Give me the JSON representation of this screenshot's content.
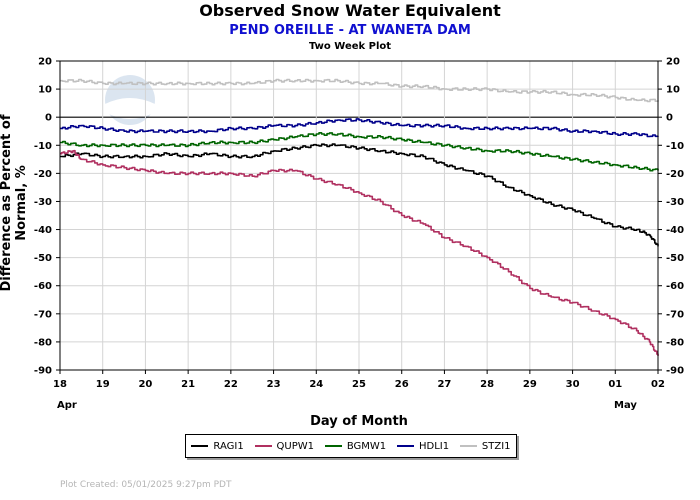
{
  "header": {
    "title": "Observed Snow Water Equivalent",
    "subtitle": "PEND OREILLE - AT WANETA DAM",
    "plot_type": "Two Week Plot"
  },
  "footer": {
    "created": "Plot Created: 05/01/2025 9:27pm PDT"
  },
  "watermark": {
    "text": "NOAA"
  },
  "chart_data": {
    "type": "line",
    "ylabel": "Difference as Percent of Normal, %",
    "xlabel": "Day of Month",
    "ylim": [
      -90,
      20
    ],
    "yticks": [
      20,
      10,
      0,
      -10,
      -20,
      -30,
      -40,
      -50,
      -60,
      -70,
      -80,
      -90
    ],
    "xlim": [
      18,
      32
    ],
    "xtick_labels": [
      "18",
      "19",
      "20",
      "21",
      "22",
      "23",
      "24",
      "25",
      "26",
      "27",
      "28",
      "29",
      "30",
      "01",
      "02"
    ],
    "month_labels": [
      {
        "label": "Apr",
        "x": 18
      },
      {
        "label": "May",
        "x": 31
      }
    ],
    "grid": true,
    "legend_position": "bottom",
    "series": [
      {
        "name": "RAGI1",
        "color": "#000000",
        "x": [
          18.0,
          18.5,
          19.0,
          19.5,
          20.0,
          20.5,
          21.0,
          21.5,
          22.0,
          22.5,
          23.0,
          23.5,
          24.0,
          24.5,
          25.0,
          25.5,
          26.0,
          26.5,
          27.0,
          27.5,
          28.0,
          28.5,
          29.0,
          29.5,
          30.0,
          30.5,
          31.0,
          31.5,
          31.8,
          32.0
        ],
        "y": [
          -14,
          -13,
          -14,
          -14,
          -14,
          -13,
          -14,
          -13,
          -14,
          -14,
          -12,
          -11,
          -10,
          -10,
          -11,
          -12,
          -13,
          -14,
          -17,
          -19,
          -21,
          -25,
          -28,
          -31,
          -33,
          -36,
          -39,
          -40,
          -42,
          -46
        ]
      },
      {
        "name": "QUPW1",
        "color": "#b03060",
        "x": [
          18.0,
          18.3,
          18.5,
          19.0,
          19.5,
          20.0,
          20.5,
          21.0,
          21.5,
          22.0,
          22.5,
          23.0,
          23.5,
          24.0,
          24.5,
          25.0,
          25.5,
          26.0,
          26.5,
          27.0,
          27.5,
          28.0,
          28.5,
          29.0,
          29.5,
          30.0,
          30.5,
          31.0,
          31.5,
          31.8,
          32.0
        ],
        "y": [
          -13,
          -12,
          -15,
          -17,
          -18,
          -19,
          -20,
          -20,
          -20,
          -20,
          -21,
          -19,
          -19,
          -22,
          -24,
          -27,
          -30,
          -35,
          -38,
          -43,
          -46,
          -50,
          -55,
          -61,
          -64,
          -66,
          -69,
          -72,
          -76,
          -80,
          -85
        ]
      },
      {
        "name": "BGMW1",
        "color": "#006400",
        "x": [
          18.0,
          18.5,
          19.0,
          19.5,
          20.0,
          20.5,
          21.0,
          21.5,
          22.0,
          22.5,
          23.0,
          23.5,
          24.0,
          24.5,
          25.0,
          25.5,
          26.0,
          26.5,
          27.0,
          27.5,
          28.0,
          28.5,
          29.0,
          29.5,
          30.0,
          30.5,
          31.0,
          31.5,
          32.0
        ],
        "y": [
          -9,
          -10,
          -10,
          -10,
          -10,
          -10,
          -10,
          -9,
          -9,
          -9,
          -8,
          -7,
          -6,
          -6,
          -7,
          -7,
          -8,
          -9,
          -10,
          -11,
          -12,
          -12,
          -13,
          -14,
          -15,
          -16,
          -17,
          -18,
          -19
        ]
      },
      {
        "name": "HDLI1",
        "color": "#00008b",
        "x": [
          18.0,
          18.5,
          19.0,
          19.5,
          20.0,
          20.5,
          21.0,
          21.5,
          22.0,
          22.5,
          23.0,
          23.5,
          24.0,
          24.5,
          25.0,
          25.5,
          26.0,
          26.5,
          27.0,
          27.5,
          28.0,
          28.5,
          29.0,
          29.5,
          30.0,
          30.5,
          31.0,
          31.5,
          32.0
        ],
        "y": [
          -4,
          -3,
          -4,
          -5,
          -5,
          -5,
          -5,
          -5,
          -4,
          -4,
          -3,
          -3,
          -2,
          -1,
          -1,
          -2,
          -3,
          -3,
          -3,
          -4,
          -4,
          -4,
          -4,
          -4,
          -5,
          -5,
          -6,
          -6,
          -7
        ]
      },
      {
        "name": "STZI1",
        "color": "#c0c0c0",
        "x": [
          18.0,
          18.5,
          19.0,
          19.5,
          20.0,
          20.5,
          21.0,
          21.5,
          22.0,
          22.5,
          23.0,
          23.5,
          24.0,
          24.5,
          25.0,
          25.5,
          26.0,
          26.5,
          27.0,
          27.5,
          28.0,
          28.5,
          29.0,
          29.5,
          30.0,
          30.5,
          31.0,
          31.5,
          32.0
        ],
        "y": [
          13,
          13,
          12,
          12,
          12,
          12,
          12,
          12,
          12,
          12,
          13,
          13,
          13,
          13,
          12,
          12,
          11,
          11,
          10,
          10,
          10,
          9,
          9,
          9,
          8,
          8,
          7,
          6,
          6
        ]
      }
    ]
  }
}
